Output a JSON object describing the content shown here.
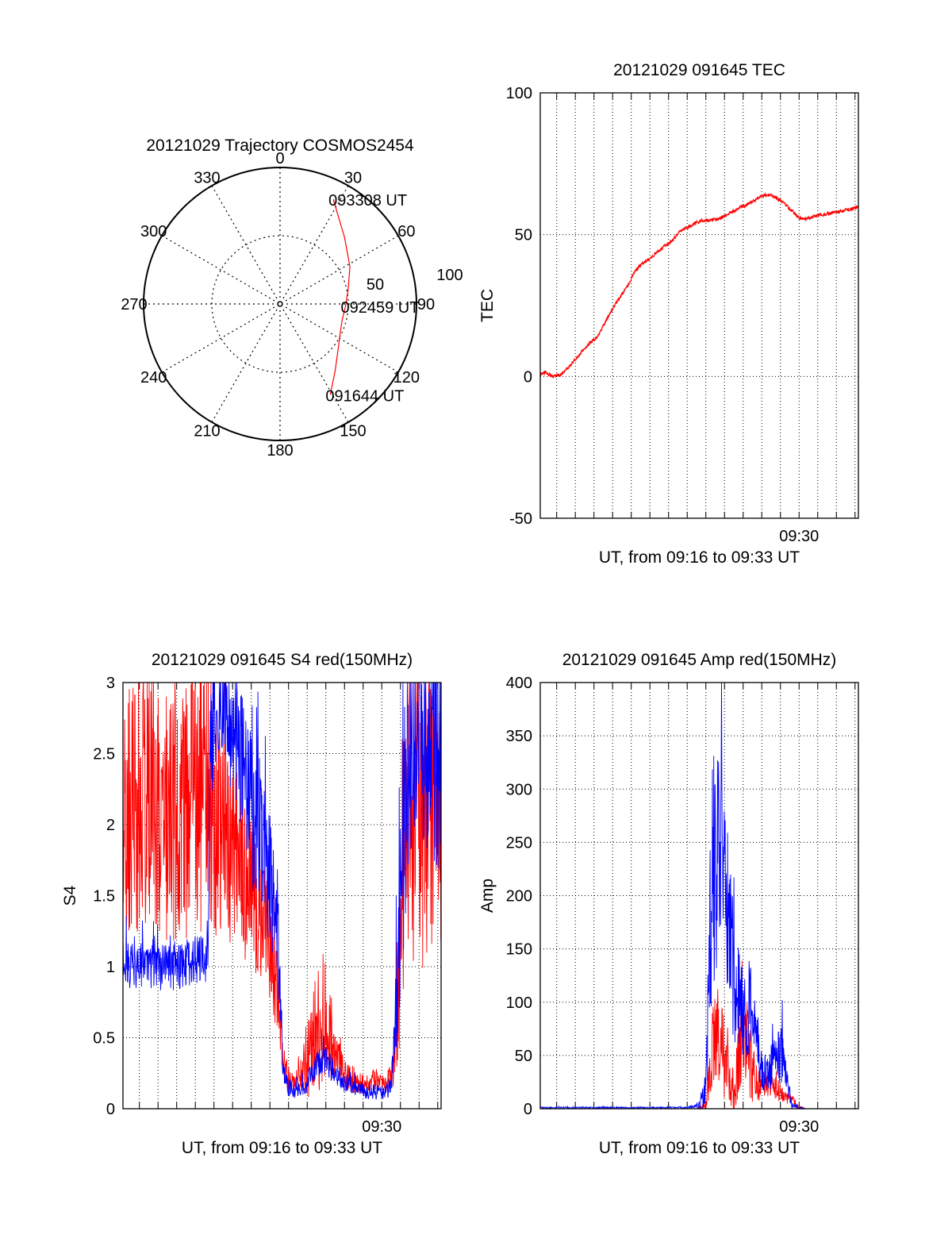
{
  "colors": {
    "red": "#ff0000",
    "blue": "#0000ff",
    "axis": "#000000",
    "grid": "#000000",
    "background": "#ffffff"
  },
  "chart_data": [
    {
      "id": "trajectory",
      "type": "polar",
      "title": "20121029 Trajectory COSMOS2454",
      "angle_labels": [
        "0",
        "30",
        "60",
        "90",
        "120",
        "150",
        "180",
        "210",
        "240",
        "270",
        "300",
        "330"
      ],
      "angle_values_deg": [
        0,
        30,
        60,
        90,
        120,
        150,
        180,
        210,
        240,
        270,
        300,
        330
      ],
      "radial_range": [
        0,
        100
      ],
      "radial_ticks": [
        50,
        100
      ],
      "radial_labels": [
        "50",
        "100"
      ],
      "grid": true,
      "series": [
        {
          "color": "red",
          "points": [
            {
              "az": 151,
              "zen": 76
            },
            {
              "az": 140,
              "zen": 63
            },
            {
              "az": 128,
              "zen": 54
            },
            {
              "az": 116,
              "zen": 49
            },
            {
              "az": 104,
              "zen": 47
            },
            {
              "az": 92,
              "zen": 48
            },
            {
              "az": 78,
              "zen": 51
            },
            {
              "az": 62,
              "zen": 58
            },
            {
              "az": 44,
              "zen": 68
            },
            {
              "az": 32,
              "zen": 79
            },
            {
              "az": 27,
              "zen": 86
            }
          ]
        }
      ],
      "annotations": [
        {
          "text": "093308 UT",
          "az": 27,
          "zen": 86
        },
        {
          "text": "092459 UT",
          "az": 92,
          "zen": 48
        },
        {
          "text": "091644 UT",
          "az": 151,
          "zen": 76
        }
      ]
    },
    {
      "id": "tec",
      "type": "line",
      "title": "20121029 091645 TEC",
      "xlabel": "UT, from 09:16 to 09:33 UT",
      "ylabel": "TEC",
      "xlim": [
        0.12,
        17.18
      ],
      "xtick_minutes": [
        1,
        2,
        3,
        4,
        5,
        6,
        7,
        8,
        9,
        10,
        11,
        12,
        13,
        14,
        15,
        16,
        17
      ],
      "xtick_label": {
        "minute": 14,
        "text": "09:30"
      },
      "ylim": [
        -50,
        100
      ],
      "yticks": [
        -50,
        0,
        50,
        100
      ],
      "ytick_labels": [
        "-50",
        "0",
        "50",
        "100"
      ],
      "grid": true,
      "series": [
        {
          "color": "red",
          "x": [
            0.12,
            0.4,
            0.8,
            1.2,
            1.6,
            2.0,
            2.4,
            2.8,
            3.2,
            3.6,
            4.0,
            4.4,
            4.8,
            5.2,
            5.6,
            6.0,
            6.4,
            6.8,
            7.2,
            7.6,
            8.0,
            8.4,
            8.8,
            9.2,
            9.6,
            10.0,
            10.4,
            10.8,
            11.2,
            11.6,
            12.0,
            12.4,
            12.8,
            13.2,
            13.6,
            14.0,
            14.4,
            14.8,
            15.2,
            15.6,
            16.0,
            16.4,
            16.8,
            17.18
          ],
          "y": [
            0.5,
            1.5,
            0.0,
            0.5,
            3.0,
            6.0,
            9.0,
            12.0,
            14.0,
            19.0,
            24.0,
            28.0,
            32.0,
            37.0,
            40.0,
            41.5,
            44.0,
            46.0,
            48.0,
            51.0,
            52.5,
            54.0,
            55.0,
            55.0,
            55.5,
            56.5,
            58.0,
            59.5,
            60.5,
            62.0,
            63.8,
            64.0,
            63.0,
            61.0,
            58.5,
            56.0,
            55.5,
            56.5,
            57.0,
            57.5,
            58.0,
            58.5,
            59.0,
            60.0
          ]
        }
      ]
    },
    {
      "id": "s4",
      "type": "line",
      "title": "20121029 091645 S4 red(150MHz)",
      "xlabel": "UT, from 09:16 to 09:33 UT",
      "ylabel": "S4",
      "xlim": [
        0.12,
        17.18
      ],
      "xtick_minutes": [
        1,
        2,
        3,
        4,
        5,
        6,
        7,
        8,
        9,
        10,
        11,
        12,
        13,
        14,
        15,
        16,
        17
      ],
      "xtick_label": {
        "minute": 14,
        "text": "09:30"
      },
      "ylim": [
        0,
        3
      ],
      "yticks": [
        0,
        0.5,
        1,
        1.5,
        2,
        2.5,
        3
      ],
      "ytick_labels": [
        "0",
        "0.5",
        "1",
        "1.5",
        "2",
        "2.5",
        "3"
      ],
      "grid": true,
      "series": [
        {
          "color": "red",
          "x": [
            0.12,
            1.0,
            2.0,
            3.0,
            4.0,
            4.8,
            5.6,
            6.4,
            7.2,
            7.6,
            8.0,
            8.4,
            8.7,
            9.0,
            9.5,
            10.0,
            10.5,
            11.0,
            11.5,
            12.0,
            12.5,
            13.0,
            13.5,
            14.0,
            14.5,
            14.8,
            15.2,
            15.6,
            16.0,
            16.6,
            17.18
          ],
          "y": [
            2.1,
            2.15,
            2.1,
            2.0,
            2.2,
            2.1,
            2.0,
            1.7,
            1.45,
            1.3,
            1.2,
            0.8,
            0.35,
            0.2,
            0.2,
            0.35,
            0.45,
            0.55,
            0.35,
            0.25,
            0.2,
            0.17,
            0.2,
            0.18,
            0.22,
            0.45,
            1.9,
            2.2,
            2.0,
            2.1,
            2.0
          ],
          "noise": [
            0.6,
            0.65,
            0.65,
            0.6,
            0.7,
            0.65,
            0.6,
            0.45,
            0.35,
            0.3,
            0.3,
            0.25,
            0.08,
            0.07,
            0.07,
            0.2,
            0.25,
            0.25,
            0.12,
            0.08,
            0.07,
            0.05,
            0.05,
            0.05,
            0.06,
            0.2,
            0.7,
            0.8,
            0.8,
            0.7,
            0.7
          ]
        },
        {
          "color": "blue",
          "x": [
            0.12,
            1.0,
            2.0,
            3.0,
            4.0,
            4.7,
            4.8,
            5.6,
            6.4,
            7.2,
            7.6,
            8.0,
            8.4,
            8.7,
            9.0,
            9.5,
            10.0,
            10.5,
            11.0,
            11.5,
            12.0,
            12.5,
            13.0,
            13.5,
            14.0,
            14.5,
            14.8,
            15.2,
            15.6,
            16.0,
            16.6,
            17.18
          ],
          "y": [
            1.0,
            1.0,
            1.0,
            1.0,
            1.05,
            1.05,
            2.7,
            2.8,
            2.5,
            2.0,
            1.8,
            1.6,
            1.3,
            0.3,
            0.15,
            0.13,
            0.18,
            0.3,
            0.35,
            0.25,
            0.18,
            0.15,
            0.13,
            0.12,
            0.12,
            0.15,
            0.8,
            2.0,
            2.5,
            2.6,
            2.5,
            2.4
          ],
          "noise": [
            0.12,
            0.12,
            0.12,
            0.12,
            0.12,
            0.12,
            0.35,
            0.3,
            0.35,
            0.4,
            0.4,
            0.35,
            0.3,
            0.07,
            0.05,
            0.04,
            0.05,
            0.08,
            0.08,
            0.06,
            0.05,
            0.04,
            0.04,
            0.04,
            0.04,
            0.05,
            0.3,
            0.6,
            0.5,
            0.5,
            0.5,
            0.6
          ]
        }
      ]
    },
    {
      "id": "amp",
      "type": "line",
      "title": "20121029 091645 Amp red(150MHz)",
      "xlabel": "UT, from 09:16 to 09:33 UT",
      "ylabel": "Amp",
      "xlim": [
        0.12,
        17.18
      ],
      "xtick_minutes": [
        1,
        2,
        3,
        4,
        5,
        6,
        7,
        8,
        9,
        10,
        11,
        12,
        13,
        14,
        15,
        16,
        17
      ],
      "xtick_label": {
        "minute": 14,
        "text": "09:30"
      },
      "ylim": [
        0,
        400
      ],
      "yticks": [
        0,
        50,
        100,
        150,
        200,
        250,
        300,
        350,
        400
      ],
      "ytick_labels": [
        "0",
        "50",
        "100",
        "150",
        "200",
        "250",
        "300",
        "350",
        "400"
      ],
      "grid": true,
      "series": [
        {
          "color": "red",
          "x": [
            0.12,
            4.0,
            8.5,
            9.0,
            9.3,
            9.6,
            9.9,
            10.2,
            10.5,
            10.8,
            11.1,
            11.4,
            11.7,
            12.0,
            12.3,
            12.6,
            12.9,
            13.2,
            13.6,
            14.0,
            14.4,
            14.8,
            15.2,
            16.0,
            17.18
          ],
          "y": [
            0,
            0,
            0,
            3,
            50,
            70,
            55,
            30,
            15,
            60,
            85,
            40,
            25,
            20,
            25,
            22,
            18,
            12,
            8,
            1,
            0,
            0,
            0,
            0,
            0
          ],
          "noise": [
            0,
            0,
            0,
            3,
            30,
            35,
            30,
            20,
            12,
            35,
            40,
            25,
            12,
            10,
            10,
            8,
            8,
            6,
            4,
            1,
            0,
            0,
            0,
            0,
            0
          ]
        },
        {
          "color": "blue",
          "x": [
            0.12,
            4.0,
            8.0,
            8.6,
            9.0,
            9.3,
            9.6,
            9.9,
            10.2,
            10.5,
            10.8,
            11.1,
            11.4,
            11.7,
            12.0,
            12.3,
            12.6,
            12.9,
            13.2,
            13.6,
            14.0,
            14.4,
            14.8,
            15.2,
            16.0,
            17.18
          ],
          "y": [
            1,
            1,
            1,
            2,
            15,
            200,
            240,
            250,
            190,
            120,
            100,
            90,
            95,
            70,
            35,
            30,
            45,
            50,
            45,
            3,
            1,
            0,
            0,
            0,
            0,
            0
          ],
          "noise": [
            0.5,
            0.5,
            0.5,
            2,
            15,
            80,
            75,
            70,
            60,
            45,
            40,
            40,
            30,
            25,
            12,
            12,
            18,
            20,
            15,
            2,
            1,
            0,
            0,
            0,
            0,
            0
          ]
        }
      ]
    }
  ]
}
